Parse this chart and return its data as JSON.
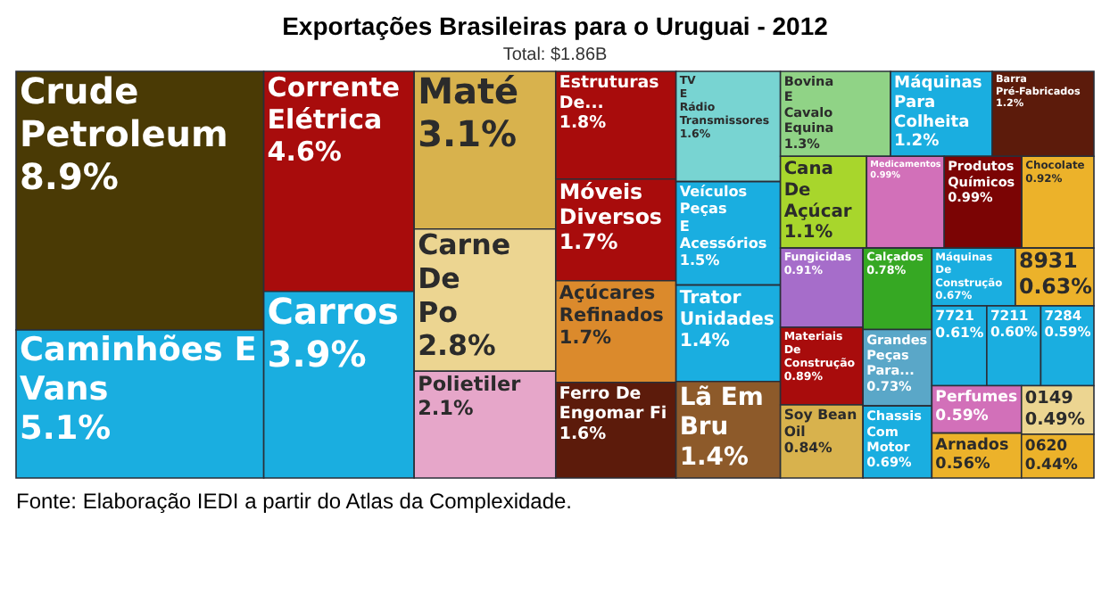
{
  "chart_data": {
    "type": "other",
    "title": "Exportações Brasileiras para o Uruguai - 2012",
    "subtitle": "Total: $1.86B",
    "annotations": [
      "Fonte: Elaboração IEDI a partir do Atlas da Complexidade."
    ],
    "categories": [
      "Crude Petroleum",
      "Caminhões E Vans",
      "Corrente Elétrica",
      "Carros",
      "Maté",
      "Carne De Po",
      "Polietiler",
      "Estruturas De...",
      "Móveis Diversos",
      "Açúcares Refinados",
      "Ferro De Engomar Fi",
      "TV E Rádio Transmissores",
      "Veículos Peças E Acessórios",
      "Trator Unidades",
      "Lã Em Bru",
      "Bovina E Cavalo Equina",
      "Máquinas Para Colheita",
      "Barra Pré-Fabricados",
      "Cana De Açúcar",
      "Medicamentos",
      "Produtos Químicos",
      "Chocolate",
      "Fungicidas",
      "Materiais De Construção",
      "Soy Bean Oil",
      "Calçados",
      "Grandes Peças Para...",
      "Chassis Com Motor",
      "Máquinas De Construção",
      "8931",
      "7721",
      "7211",
      "7284",
      "Perfumes",
      "Arnados",
      "0149",
      "0620"
    ],
    "values": [
      8.9,
      5.1,
      4.6,
      3.9,
      3.1,
      2.8,
      2.1,
      1.8,
      1.7,
      1.7,
      1.6,
      1.6,
      1.5,
      1.4,
      1.4,
      1.3,
      1.2,
      1.2,
      1.1,
      0.99,
      0.99,
      0.92,
      0.91,
      0.89,
      0.84,
      0.78,
      0.73,
      0.69,
      0.67,
      0.63,
      0.61,
      0.6,
      0.59,
      0.59,
      0.56,
      0.49,
      0.44
    ],
    "colors": [
      "#4a3a05",
      "#1aaee0",
      "#a80c0c",
      "#1aaee0",
      "#d8b24d",
      "#ecd591",
      "#e6a6c9",
      "#a80c0c",
      "#a80c0c",
      "#db8a2c",
      "#5c1b0b",
      "#78d4d2",
      "#1aaee0",
      "#1aaee0",
      "#8d5a2a",
      "#90d386",
      "#1aaee0",
      "#5c1b0b",
      "#a8d62c",
      "#d270b9",
      "#7b0404",
      "#ecb22a",
      "#a66dca",
      "#a80c0c",
      "#d8b24d",
      "#36a823",
      "#5aa7c8",
      "#1aaee0",
      "#1aaee0",
      "#ecb22a",
      "#1aaee0",
      "#1aaee0",
      "#1aaee0",
      "#d270b9",
      "#ecb22a",
      "#ecd591",
      "#ecb22a"
    ],
    "value_labels": [
      "8.9%",
      "5.1%",
      "4.6%",
      "3.9%",
      "3.1%",
      "2.8%",
      "2.1%",
      "1.8%",
      "1.7%",
      "1.7%",
      "1.6%",
      "1.6%",
      "1.5%",
      "1.4%",
      "1.4%",
      "1.3%",
      "1.2%",
      "1.2%",
      "1.1%",
      "0.99%",
      "0.99%",
      "0.92%",
      "0.91%",
      "0.89%",
      "0.84%",
      "0.78%",
      "0.73%",
      "0.69%",
      "0.67%",
      "0.63%",
      "0.61%",
      "0.60%",
      "0.59%",
      "0.59%",
      "0.56%",
      "0.49%",
      "0.44%"
    ]
  }
}
